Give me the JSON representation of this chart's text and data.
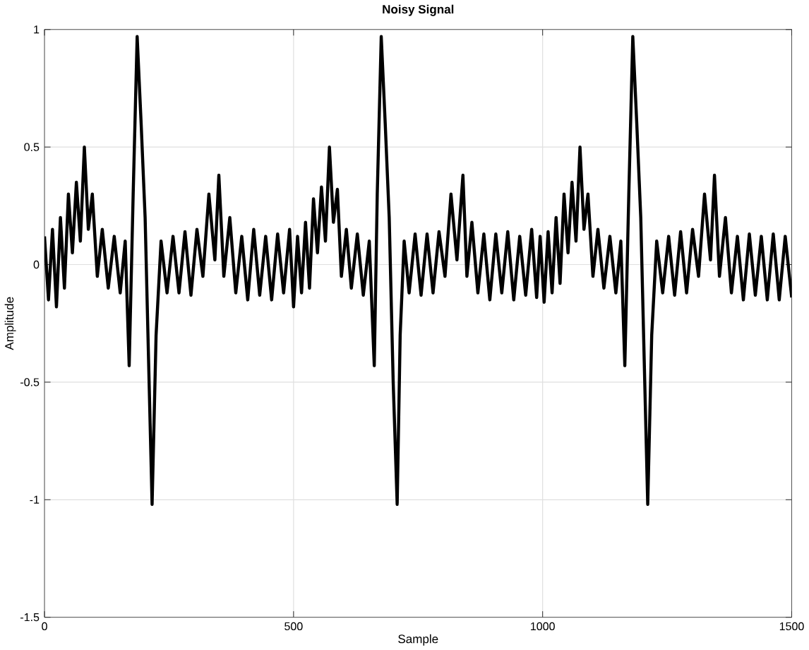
{
  "chart_data": {
    "type": "line",
    "title": "Noisy Signal",
    "xlabel": "Sample",
    "ylabel": "Amplitude",
    "xlim": [
      0,
      1500
    ],
    "ylim": [
      -1.5,
      1
    ],
    "xticks": [
      0,
      500,
      1000,
      1500
    ],
    "yticks": [
      -1.5,
      -1,
      -0.5,
      0,
      0.5,
      1
    ],
    "grid": true,
    "marker": "none",
    "line_style": "solid",
    "series": [
      {
        "color": "#000000",
        "x": [
          0,
          8,
          16,
          24,
          32,
          40,
          48,
          56,
          64,
          72,
          80,
          88,
          96,
          106,
          116,
          128,
          140,
          152,
          162,
          170,
          178,
          186,
          194,
          202,
          210,
          216,
          224,
          234,
          246,
          258,
          270,
          282,
          294,
          306,
          318,
          330,
          342,
          350,
          360,
          372,
          384,
          396,
          408,
          420,
          432,
          444,
          456,
          468,
          480,
          492,
          500,
          508,
          516,
          524,
          532,
          540,
          548,
          556,
          564,
          572,
          580,
          588,
          596,
          606,
          616,
          628,
          640,
          652,
          662,
          668,
          676,
          684,
          692,
          700,
          708,
          714,
          722,
          732,
          744,
          756,
          768,
          780,
          792,
          804,
          816,
          828,
          840,
          848,
          858,
          870,
          882,
          894,
          906,
          918,
          930,
          942,
          954,
          966,
          978,
          988,
          995,
          1003,
          1011,
          1019,
          1027,
          1035,
          1043,
          1051,
          1059,
          1067,
          1075,
          1083,
          1091,
          1101,
          1111,
          1123,
          1135,
          1147,
          1157,
          1165,
          1173,
          1181,
          1189,
          1197,
          1205,
          1211,
          1219,
          1229,
          1241,
          1253,
          1265,
          1277,
          1289,
          1301,
          1313,
          1325,
          1337,
          1345,
          1355,
          1367,
          1379,
          1391,
          1403,
          1415,
          1427,
          1439,
          1451,
          1463,
          1475,
          1487,
          1500
        ],
        "values": [
          0.12,
          -0.15,
          0.15,
          -0.18,
          0.2,
          -0.1,
          0.3,
          0.05,
          0.35,
          0.1,
          0.5,
          0.15,
          0.3,
          -0.05,
          0.15,
          -0.1,
          0.12,
          -0.12,
          0.1,
          -0.43,
          0.3,
          0.97,
          0.6,
          0.2,
          -0.5,
          -1.02,
          -0.3,
          0.1,
          -0.12,
          0.12,
          -0.12,
          0.14,
          -0.13,
          0.15,
          -0.05,
          0.3,
          0.02,
          0.38,
          -0.05,
          0.2,
          -0.12,
          0.12,
          -0.15,
          0.15,
          -0.13,
          0.12,
          -0.15,
          0.13,
          -0.12,
          0.15,
          -0.18,
          0.12,
          -0.12,
          0.18,
          -0.1,
          0.28,
          0.05,
          0.33,
          0.1,
          0.5,
          0.18,
          0.32,
          -0.05,
          0.15,
          -0.1,
          0.13,
          -0.13,
          0.1,
          -0.43,
          0.3,
          0.97,
          0.6,
          0.2,
          -0.5,
          -1.02,
          -0.3,
          0.1,
          -0.12,
          0.13,
          -0.13,
          0.13,
          -0.12,
          0.14,
          -0.05,
          0.3,
          0.02,
          0.38,
          -0.05,
          0.18,
          -0.12,
          0.13,
          -0.15,
          0.13,
          -0.12,
          0.14,
          -0.15,
          0.12,
          -0.13,
          0.15,
          -0.14,
          0.12,
          -0.16,
          0.14,
          -0.12,
          0.2,
          -0.08,
          0.3,
          0.05,
          0.35,
          0.1,
          0.5,
          0.15,
          0.3,
          -0.05,
          0.15,
          -0.1,
          0.12,
          -0.12,
          0.1,
          -0.43,
          0.3,
          0.97,
          0.6,
          0.2,
          -0.5,
          -1.02,
          -0.3,
          0.1,
          -0.12,
          0.12,
          -0.13,
          0.14,
          -0.12,
          0.15,
          -0.05,
          0.3,
          0.02,
          0.38,
          -0.05,
          0.2,
          -0.12,
          0.12,
          -0.15,
          0.13,
          -0.13,
          0.12,
          -0.15,
          0.13,
          -0.15,
          0.12,
          -0.14
        ]
      }
    ]
  }
}
